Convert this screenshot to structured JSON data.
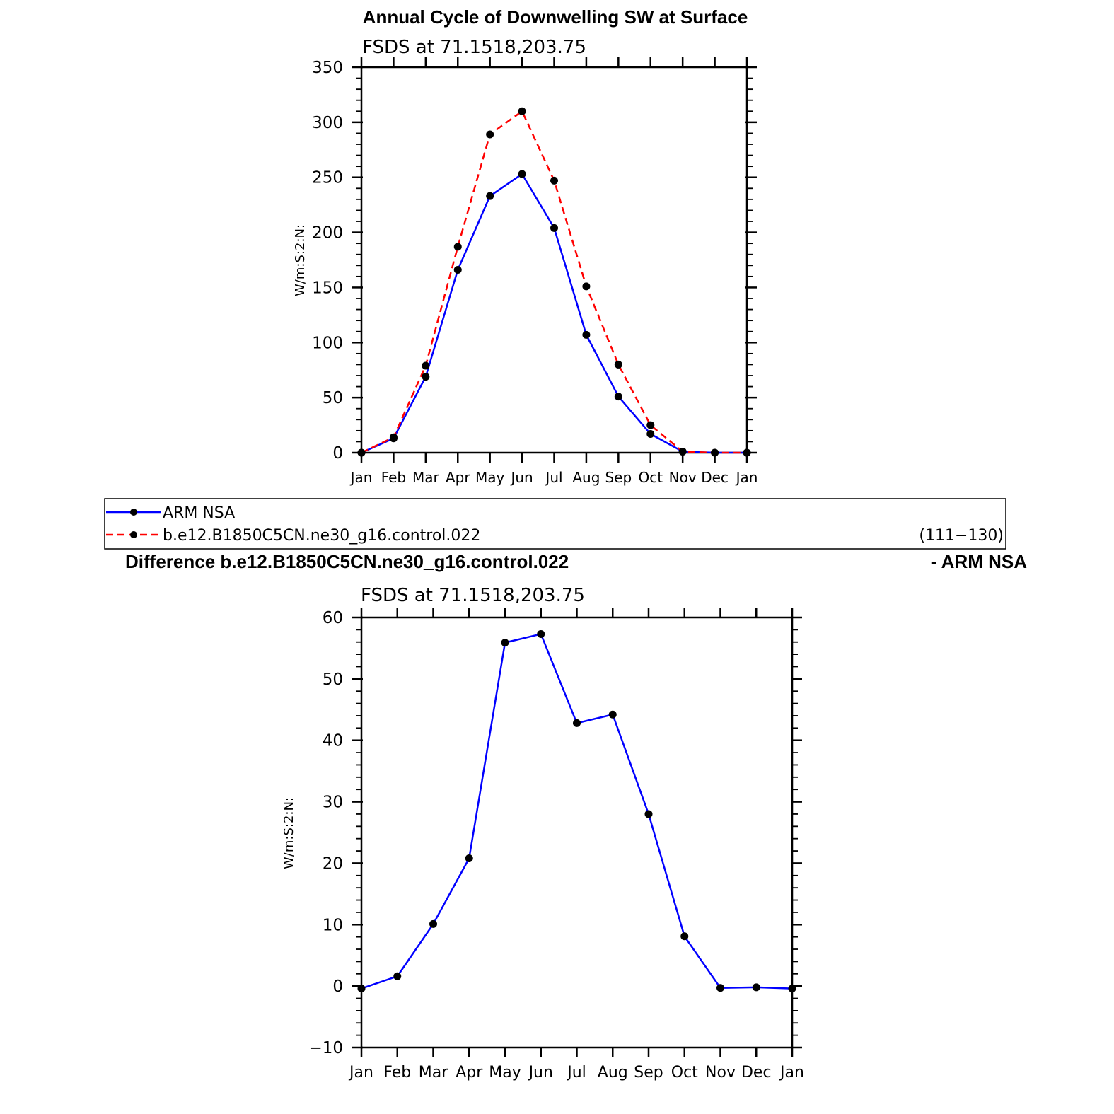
{
  "chart_data": [
    {
      "type": "line",
      "title": "Annual Cycle of Downwelling SW at Surface",
      "subtitle": "FSDS at 71.1518,203.75",
      "ylabel": "W/m:S:2:N:",
      "xlabel": "",
      "categories": [
        "Jan",
        "Feb",
        "Mar",
        "Apr",
        "May",
        "Jun",
        "Jul",
        "Aug",
        "Sep",
        "Oct",
        "Nov",
        "Dec",
        "Jan"
      ],
      "yticks": [
        "0",
        "50",
        "100",
        "150",
        "200",
        "250",
        "300",
        "350"
      ],
      "ylim": [
        0,
        350
      ],
      "series": [
        {
          "name": "ARM NSA",
          "color": "#0000ff",
          "dash": "solid",
          "values": [
            0,
            13,
            69,
            166,
            233,
            253,
            204,
            107,
            51,
            17,
            1,
            0,
            0
          ]
        },
        {
          "name": "b.e12.B1850C5CN.ne30_g16.control.022",
          "color": "#ff0000",
          "dash": "dashed",
          "values": [
            0,
            14,
            79,
            187,
            289,
            310,
            247,
            151,
            80,
            25,
            1,
            0,
            0
          ]
        }
      ]
    },
    {
      "type": "line",
      "title": "Difference b.e12.B1850C5CN.ne30_g16.control.022",
      "title_suffix": "- ARM NSA",
      "subtitle": "FSDS at 71.1518,203.75",
      "ylabel": "W/m:S:2:N:",
      "xlabel": "",
      "categories": [
        "Jan",
        "Feb",
        "Mar",
        "Apr",
        "May",
        "Jun",
        "Jul",
        "Aug",
        "Sep",
        "Oct",
        "Nov",
        "Dec",
        "Jan"
      ],
      "yticks": [
        "−10",
        "0",
        "10",
        "20",
        "30",
        "40",
        "50",
        "60"
      ],
      "ylim": [
        -10,
        60
      ],
      "series": [
        {
          "color": "#0000ff",
          "dash": "solid",
          "values": [
            -0.4,
            1.6,
            10.1,
            20.8,
            55.9,
            57.3,
            42.8,
            44.2,
            28.0,
            8.1,
            -0.3,
            -0.2,
            -0.4
          ]
        }
      ]
    }
  ],
  "legend": {
    "items": [
      {
        "label": "ARM NSA",
        "color": "#0000ff",
        "dash": "solid"
      },
      {
        "label": "b.e12.B1850C5CN.ne30_g16.control.022",
        "color": "#ff0000",
        "dash": "dashed"
      }
    ],
    "years": "(111−130)"
  }
}
